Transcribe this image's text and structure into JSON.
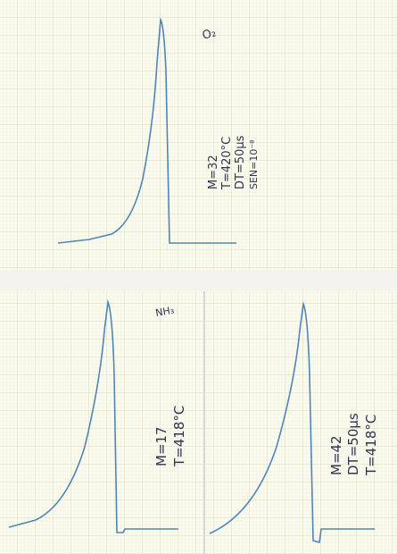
{
  "top_panel": {
    "label": "O₂",
    "notes": [
      "M=32",
      "T=420°C",
      "DT=50μs",
      "SEN=10⁻⁸"
    ]
  },
  "bottom_left_panel": {
    "label": "NH₃",
    "notes": [
      "M=17",
      "T=418°C"
    ]
  },
  "bottom_right_panel": {
    "notes": [
      "M=42",
      "DT=50μs",
      "T=418°C"
    ]
  }
}
